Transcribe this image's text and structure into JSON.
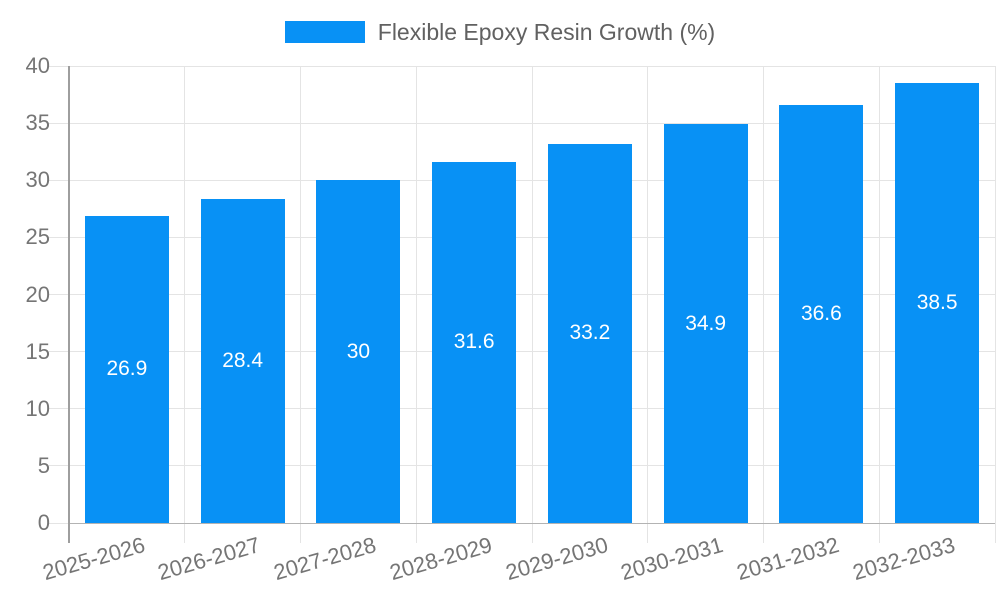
{
  "chart_data": {
    "type": "bar",
    "title": "",
    "legend_label": "Flexible Epoxy Resin Growth (%)",
    "legend_position": "top",
    "categories": [
      "2025-2026",
      "2026-2027",
      "2027-2028",
      "2028-2029",
      "2029-2030",
      "2030-2031",
      "2031-2032",
      "2032-2033"
    ],
    "values": [
      26.9,
      28.4,
      30,
      31.6,
      33.2,
      34.9,
      36.6,
      38.5
    ],
    "value_labels": [
      "26.9",
      "28.4",
      "30",
      "31.6",
      "33.2",
      "34.9",
      "36.6",
      "38.5"
    ],
    "xlabel": "",
    "ylabel": "",
    "ylim": [
      0,
      40
    ],
    "yticks": [
      0,
      5,
      10,
      15,
      20,
      25,
      30,
      35,
      40
    ],
    "grid": true,
    "colors": {
      "bar": "#0891f5",
      "grid": "#e4e4e4",
      "axis": "#9e9e9e",
      "baseline": "#b3b3b3",
      "tick_text": "#757575",
      "legend_text": "#616161",
      "bar_label_text": "#ffffff",
      "background": "#ffffff"
    }
  }
}
